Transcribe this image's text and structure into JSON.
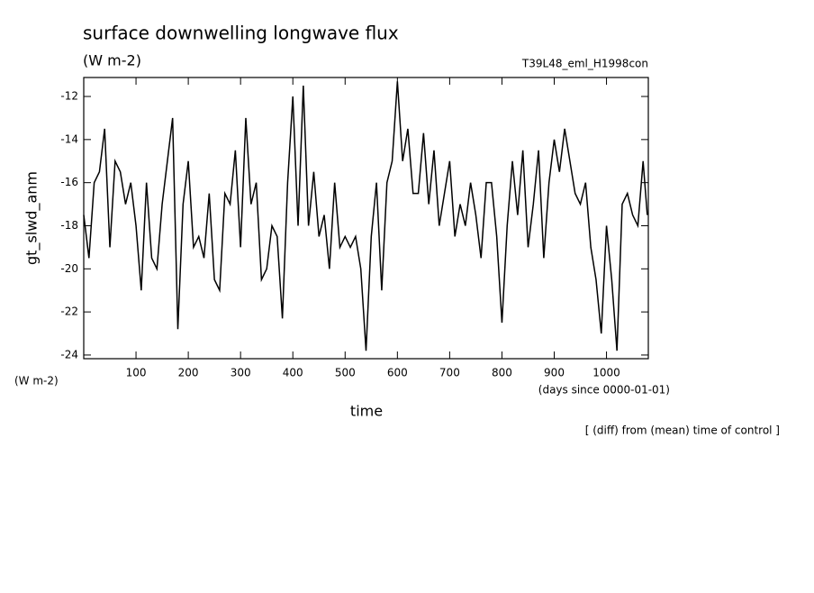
{
  "chart_data": {
    "type": "line",
    "title": "surface downwelling longwave flux",
    "subtitle": "(W m-2)",
    "run_label": "T39L48_eml_H1998con",
    "y_label": "gt_slwd_anm",
    "y_unit": "(W m-2)",
    "x_label": "time",
    "x_unit": "(days since 0000-01-01)",
    "note": "[ (diff) from (mean) time of control ]",
    "xlim": [
      0,
      1080
    ],
    "ylim": [
      -24.17,
      -11.12
    ],
    "xticks": [
      100,
      200,
      300,
      400,
      500,
      600,
      700,
      800,
      900,
      1000
    ],
    "yticks": [
      -12,
      -14,
      -16,
      -18,
      -20,
      -22,
      -24
    ],
    "x": [
      0,
      10,
      20,
      30,
      40,
      50,
      60,
      70,
      80,
      90,
      100,
      110,
      120,
      130,
      140,
      150,
      160,
      170,
      180,
      190,
      200,
      210,
      220,
      230,
      240,
      250,
      260,
      270,
      280,
      290,
      300,
      310,
      320,
      330,
      340,
      350,
      360,
      370,
      380,
      390,
      400,
      410,
      420,
      430,
      440,
      450,
      460,
      470,
      480,
      490,
      500,
      510,
      520,
      530,
      540,
      550,
      560,
      570,
      580,
      590,
      600,
      610,
      620,
      630,
      640,
      650,
      660,
      670,
      680,
      690,
      700,
      710,
      720,
      730,
      740,
      750,
      760,
      770,
      780,
      790,
      800,
      810,
      820,
      830,
      840,
      850,
      860,
      870,
      880,
      890,
      900,
      910,
      920,
      930,
      940,
      950,
      960,
      970,
      980,
      990,
      1000,
      1010,
      1020,
      1030,
      1040,
      1050,
      1060,
      1070,
      1078
    ],
    "series": [
      {
        "name": "gt_slwd_anm",
        "color": "#000000",
        "values": [
          -17.5,
          -19.5,
          -16,
          -15.5,
          -13.5,
          -19,
          -15,
          -15.5,
          -17,
          -16,
          -18,
          -21,
          -16,
          -19.5,
          -20,
          -17,
          -15,
          -13,
          -22.8,
          -17,
          -15,
          -19,
          -18.5,
          -19.5,
          -16.5,
          -20.5,
          -21,
          -16.5,
          -17,
          -14.5,
          -19,
          -13,
          -17,
          -16,
          -20.5,
          -20,
          -18,
          -18.5,
          -22.3,
          -16,
          -12,
          -18,
          -11.5,
          -18,
          -15.5,
          -18.5,
          -17.5,
          -20,
          -16,
          -19,
          -18.5,
          -19,
          -18.5,
          -20,
          -23.8,
          -18.5,
          -16,
          -21,
          -16,
          -15,
          -11.3,
          -15,
          -13.5,
          -16.5,
          -16.5,
          -13.7,
          -17,
          -14.5,
          -18,
          -16.5,
          -15,
          -18.5,
          -17,
          -18,
          -16,
          -17.5,
          -19.5,
          -16,
          -16,
          -18.5,
          -22.5,
          -18,
          -15,
          -17.5,
          -14.5,
          -19,
          -17,
          -14.5,
          -19.5,
          -16,
          -14,
          -15.5,
          -13.5,
          -15,
          -16.5,
          -17,
          -16,
          -19,
          -20.5,
          -23,
          -18,
          -20.5,
          -23.8,
          -17,
          -16.5,
          -17.5,
          -18,
          -15,
          -17.5
        ]
      }
    ]
  }
}
